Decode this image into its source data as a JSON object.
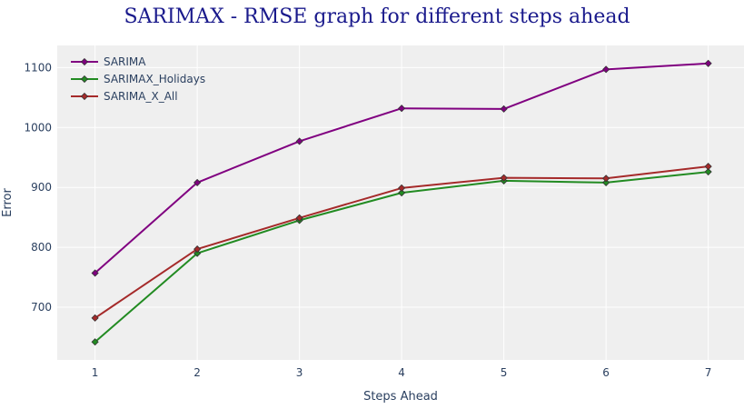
{
  "chart_data": {
    "type": "line",
    "title": "SARIMAX - RMSE graph for different steps ahead",
    "xlabel": "Steps Ahead",
    "ylabel": "Error",
    "x": [
      1,
      2,
      3,
      4,
      5,
      6,
      7
    ],
    "x_ticks": [
      "1",
      "2",
      "3",
      "4",
      "5",
      "6",
      "7"
    ],
    "y_ticks": [
      "700",
      "800",
      "900",
      "1000",
      "1100"
    ],
    "xlim": [
      0.63,
      7.35
    ],
    "ylim": [
      612,
      1137
    ],
    "grid": true,
    "legend_position": "top-left",
    "series": [
      {
        "name": "SARIMA",
        "color": "#800080",
        "values": [
          757,
          908,
          977,
          1032,
          1031,
          1097,
          1107
        ]
      },
      {
        "name": "SARIMAX_Holidays",
        "color": "#228b22",
        "values": [
          642,
          790,
          845,
          891,
          911,
          908,
          926
        ]
      },
      {
        "name": "SARIMA_X_All",
        "color": "#a52a2a",
        "values": [
          682,
          797,
          849,
          899,
          916,
          915,
          935
        ]
      }
    ]
  }
}
